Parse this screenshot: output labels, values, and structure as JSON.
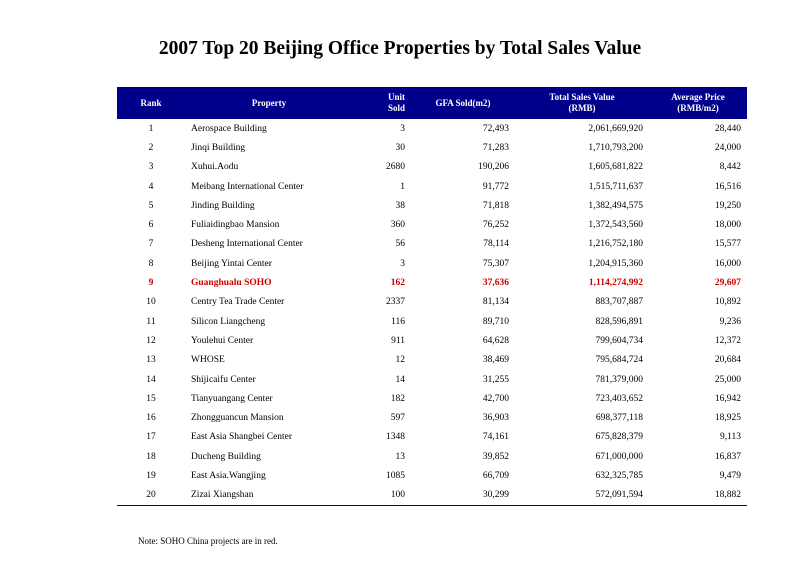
{
  "title": "2007 Top 20 Beijing Office Properties by Total Sales Value",
  "colors": {
    "header_bg": "#00008b",
    "header_text": "#ffffff",
    "highlight_text": "#cc0000"
  },
  "table": {
    "headers": {
      "rank": "Rank",
      "property": "Property",
      "unit_sold_line1": "Unit",
      "unit_sold_line2": "Sold",
      "gfa_sold": "GFA Sold(m2)",
      "total_sales_line1": "Total Sales Value",
      "total_sales_line2": "(RMB)",
      "avg_price_line1": "Average Price",
      "avg_price_line2": "(RMB/m2)"
    },
    "rows": [
      {
        "rank": "1",
        "property": "Aerospace Building",
        "unit_sold": "3",
        "gfa_sold": "72,493",
        "total_sales": "2,061,669,920",
        "avg_price": "28,440",
        "highlight": false
      },
      {
        "rank": "2",
        "property": "Jinqi Building",
        "unit_sold": "30",
        "gfa_sold": "71,283",
        "total_sales": "1,710,793,200",
        "avg_price": "24,000",
        "highlight": false
      },
      {
        "rank": "3",
        "property": "Xuhui.Aodu",
        "unit_sold": "2680",
        "gfa_sold": "190,206",
        "total_sales": "1,605,681,822",
        "avg_price": "8,442",
        "highlight": false
      },
      {
        "rank": "4",
        "property": "Meibang International Center",
        "unit_sold": "1",
        "gfa_sold": "91,772",
        "total_sales": "1,515,711,637",
        "avg_price": "16,516",
        "highlight": false
      },
      {
        "rank": "5",
        "property": "Jinding Building",
        "unit_sold": "38",
        "gfa_sold": "71,818",
        "total_sales": "1,382,494,575",
        "avg_price": "19,250",
        "highlight": false
      },
      {
        "rank": "6",
        "property": "Fuliaidingbao Mansion",
        "unit_sold": "360",
        "gfa_sold": "76,252",
        "total_sales": "1,372,543,560",
        "avg_price": "18,000",
        "highlight": false
      },
      {
        "rank": "7",
        "property": "Desheng International Center",
        "unit_sold": "56",
        "gfa_sold": "78,114",
        "total_sales": "1,216,752,180",
        "avg_price": "15,577",
        "highlight": false
      },
      {
        "rank": "8",
        "property": "Beijing Yintai Center",
        "unit_sold": "3",
        "gfa_sold": "75,307",
        "total_sales": "1,204,915,360",
        "avg_price": "16,000",
        "highlight": false
      },
      {
        "rank": "9",
        "property": "Guanghualu SOHO",
        "unit_sold": "162",
        "gfa_sold": "37,636",
        "total_sales": "1,114,274,992",
        "avg_price": "29,607",
        "highlight": true
      },
      {
        "rank": "10",
        "property": "Centry Tea Trade Center",
        "unit_sold": "2337",
        "gfa_sold": "81,134",
        "total_sales": "883,707,887",
        "avg_price": "10,892",
        "highlight": false
      },
      {
        "rank": "11",
        "property": "Silicon Liangcheng",
        "unit_sold": "116",
        "gfa_sold": "89,710",
        "total_sales": "828,596,891",
        "avg_price": "9,236",
        "highlight": false
      },
      {
        "rank": "12",
        "property": "Youlehui Center",
        "unit_sold": "911",
        "gfa_sold": "64,628",
        "total_sales": "799,604,734",
        "avg_price": "12,372",
        "highlight": false
      },
      {
        "rank": "13",
        "property": "WHOSE",
        "unit_sold": "12",
        "gfa_sold": "38,469",
        "total_sales": "795,684,724",
        "avg_price": "20,684",
        "highlight": false
      },
      {
        "rank": "14",
        "property": "Shijicaifu Center",
        "unit_sold": "14",
        "gfa_sold": "31,255",
        "total_sales": "781,379,000",
        "avg_price": "25,000",
        "highlight": false
      },
      {
        "rank": "15",
        "property": "Tianyuangang Center",
        "unit_sold": "182",
        "gfa_sold": "42,700",
        "total_sales": "723,403,652",
        "avg_price": "16,942",
        "highlight": false
      },
      {
        "rank": "16",
        "property": "Zhongguancun Mansion",
        "unit_sold": "597",
        "gfa_sold": "36,903",
        "total_sales": "698,377,118",
        "avg_price": "18,925",
        "highlight": false
      },
      {
        "rank": "17",
        "property": "East Asia Shangbei Center",
        "unit_sold": "1348",
        "gfa_sold": "74,161",
        "total_sales": "675,828,379",
        "avg_price": "9,113",
        "highlight": false
      },
      {
        "rank": "18",
        "property": "Ducheng Building",
        "unit_sold": "13",
        "gfa_sold": "39,852",
        "total_sales": "671,000,000",
        "avg_price": "16,837",
        "highlight": false
      },
      {
        "rank": "19",
        "property": "East Asia.Wangjing",
        "unit_sold": "1085",
        "gfa_sold": "66,709",
        "total_sales": "632,325,785",
        "avg_price": "9,479",
        "highlight": false
      },
      {
        "rank": "20",
        "property": "Zizai Xiangshan",
        "unit_sold": "100",
        "gfa_sold": "30,299",
        "total_sales": "572,091,594",
        "avg_price": "18,882",
        "highlight": false
      }
    ]
  },
  "note": "Note: SOHO China  projects are in red."
}
